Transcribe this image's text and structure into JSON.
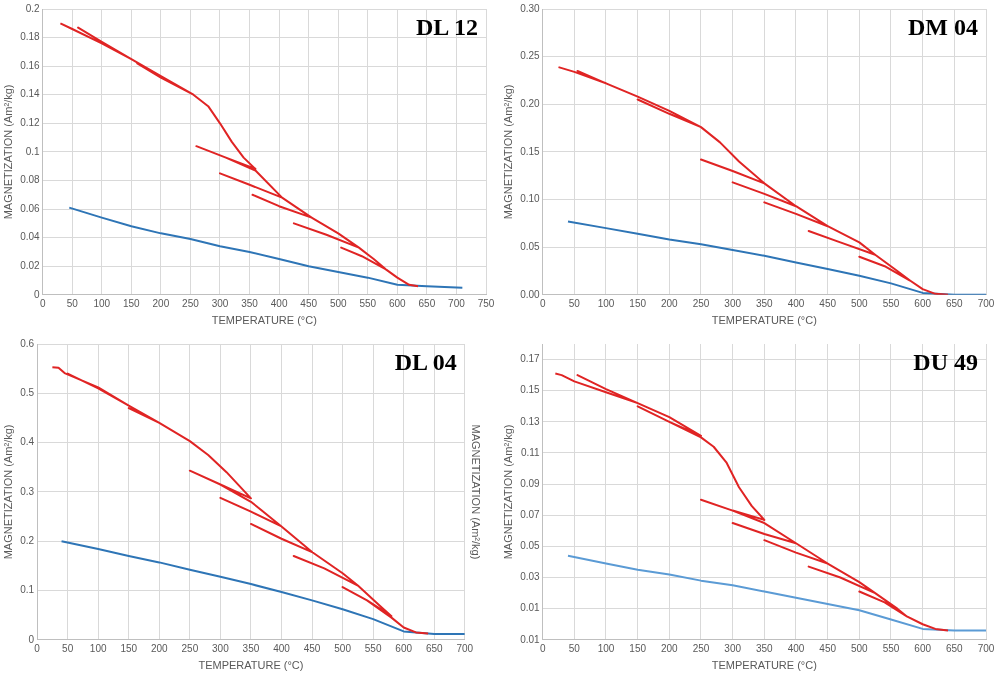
{
  "chart_data": [
    {
      "type": "line",
      "title": "DL 12",
      "xlabel": "TEMPERATURE (°C)",
      "ylabel": "MAGNETIZATION (Am²/kg)",
      "xlim": [
        0,
        750
      ],
      "xticks": [
        0,
        50,
        100,
        150,
        200,
        250,
        300,
        350,
        400,
        450,
        500,
        550,
        600,
        650,
        700,
        750
      ],
      "ylim": [
        0,
        0.2
      ],
      "yticks": [
        0,
        0.02,
        0.04,
        0.06,
        0.08,
        0.1,
        0.12,
        0.14,
        0.16,
        0.18,
        0.2
      ],
      "grid": true,
      "series": [
        {
          "color": "#e02424",
          "x": [
            30,
            50,
            100,
            150,
            100,
            60,
            100,
            150,
            200,
            255,
            200,
            160,
            200,
            255,
            280,
            300,
            320,
            340,
            360,
            310,
            260,
            310,
            360,
            405,
            350,
            300,
            350,
            405,
            455,
            400,
            355,
            400,
            455,
            500,
            535,
            480,
            425,
            480,
            535,
            560,
            580,
            540,
            505,
            540,
            580,
            600,
            620,
            635
          ],
          "values": [
            0.19,
            0.186,
            0.176,
            0.165,
            0.177,
            0.187,
            0.177,
            0.165,
            0.153,
            0.14,
            0.152,
            0.162,
            0.152,
            0.14,
            0.132,
            0.12,
            0.107,
            0.096,
            0.088,
            0.096,
            0.104,
            0.096,
            0.087,
            0.068,
            0.077,
            0.085,
            0.077,
            0.068,
            0.054,
            0.062,
            0.07,
            0.062,
            0.054,
            0.043,
            0.033,
            0.042,
            0.05,
            0.042,
            0.033,
            0.025,
            0.018,
            0.027,
            0.033,
            0.027,
            0.018,
            0.012,
            0.007,
            0.006
          ]
        },
        {
          "color": "#2e75b6",
          "x": [
            45,
            100,
            150,
            200,
            250,
            300,
            350,
            400,
            450,
            500,
            550,
            600,
            650,
            710
          ],
          "values": [
            0.061,
            0.054,
            0.048,
            0.043,
            0.039,
            0.034,
            0.03,
            0.025,
            0.02,
            0.016,
            0.012,
            0.007,
            0.006,
            0.005
          ]
        }
      ]
    },
    {
      "type": "line",
      "title": "DM 04",
      "xlabel": "TEMPERATURE (°C)",
      "ylabel": "MAGNETIZATION (Am²/kg)",
      "xlim": [
        0,
        700
      ],
      "xticks": [
        0,
        50,
        100,
        150,
        200,
        250,
        300,
        350,
        400,
        450,
        500,
        550,
        600,
        650,
        700
      ],
      "ylim": [
        0,
        0.3
      ],
      "yticks": [
        {
          "value": 0,
          "label": "0.00"
        },
        {
          "value": 0.05,
          "label": "0.05"
        },
        {
          "value": 0.1,
          "label": "0.10"
        },
        {
          "value": 0.15,
          "label": "0.15"
        },
        {
          "value": 0.2,
          "label": "0.20"
        },
        {
          "value": 0.25,
          "label": "0.25"
        },
        {
          "value": 0.3,
          "label": "0.30"
        }
      ],
      "grid": true,
      "series": [
        {
          "color": "#e02424",
          "x": [
            25,
            50,
            100,
            150,
            100,
            55,
            100,
            150,
            200,
            250,
            200,
            150,
            200,
            250,
            280,
            310,
            350,
            300,
            250,
            300,
            350,
            400,
            350,
            300,
            350,
            400,
            450,
            400,
            350,
            400,
            450,
            500,
            525,
            470,
            420,
            470,
            525,
            560,
            580,
            540,
            500,
            540,
            580,
            600,
            620,
            640
          ],
          "values": [
            0.239,
            0.234,
            0.222,
            0.208,
            0.222,
            0.235,
            0.222,
            0.208,
            0.193,
            0.176,
            0.19,
            0.205,
            0.19,
            0.176,
            0.16,
            0.14,
            0.117,
            0.13,
            0.142,
            0.13,
            0.117,
            0.093,
            0.106,
            0.118,
            0.106,
            0.093,
            0.072,
            0.085,
            0.097,
            0.085,
            0.072,
            0.055,
            0.042,
            0.055,
            0.067,
            0.055,
            0.042,
            0.025,
            0.015,
            0.03,
            0.04,
            0.03,
            0.015,
            0.006,
            0.001,
            0
          ]
        },
        {
          "color": "#2e75b6",
          "x": [
            40,
            100,
            150,
            200,
            250,
            300,
            350,
            400,
            450,
            500,
            550,
            600,
            650,
            700
          ],
          "values": [
            0.077,
            0.07,
            0.064,
            0.058,
            0.053,
            0.047,
            0.041,
            0.034,
            0.027,
            0.02,
            0.012,
            0.002,
            0,
            0
          ]
        }
      ]
    },
    {
      "type": "line",
      "title": "DL 04",
      "xlabel": "TEMPERATURE (°C)",
      "ylabel": "MAGNETIZATION (Am²/kg)",
      "y2label": "MAGNETIZATION (Am²/kg)",
      "xlim": [
        0,
        700
      ],
      "xticks": [
        0,
        50,
        100,
        150,
        200,
        250,
        300,
        350,
        400,
        450,
        500,
        550,
        600,
        650,
        700
      ],
      "ylim": [
        0,
        0.6
      ],
      "yticks": [
        0,
        0.1,
        0.2,
        0.3,
        0.4,
        0.5,
        0.6
      ],
      "grid": true,
      "series": [
        {
          "color": "#e02424",
          "x": [
            25,
            35,
            45,
            100,
            150,
            100,
            50,
            100,
            150,
            200,
            250,
            200,
            150,
            200,
            250,
            280,
            310,
            350,
            300,
            250,
            300,
            350,
            400,
            350,
            300,
            350,
            400,
            450,
            400,
            350,
            400,
            450,
            500,
            525,
            470,
            420,
            470,
            525,
            560,
            580,
            540,
            500,
            540,
            580,
            600,
            620,
            640
          ],
          "values": [
            0.553,
            0.552,
            0.541,
            0.512,
            0.475,
            0.51,
            0.54,
            0.51,
            0.475,
            0.44,
            0.403,
            0.44,
            0.47,
            0.44,
            0.403,
            0.375,
            0.34,
            0.287,
            0.315,
            0.343,
            0.315,
            0.28,
            0.23,
            0.26,
            0.288,
            0.26,
            0.23,
            0.178,
            0.205,
            0.235,
            0.205,
            0.178,
            0.135,
            0.11,
            0.145,
            0.17,
            0.145,
            0.11,
            0.07,
            0.048,
            0.08,
            0.107,
            0.08,
            0.045,
            0.025,
            0.015,
            0.013
          ]
        },
        {
          "color": "#2e75b6",
          "x": [
            40,
            100,
            150,
            200,
            250,
            300,
            350,
            400,
            450,
            500,
            550,
            600,
            650,
            700
          ],
          "values": [
            0.2,
            0.184,
            0.17,
            0.157,
            0.142,
            0.128,
            0.113,
            0.097,
            0.08,
            0.062,
            0.042,
            0.017,
            0.012,
            0.012
          ]
        }
      ]
    },
    {
      "type": "line",
      "title": "DU 49",
      "xlabel": "TEMPERATURE (°C)",
      "ylabel": "MAGNETIZATION (Am²/kg)",
      "xlim": [
        0,
        700
      ],
      "xticks": [
        0,
        50,
        100,
        150,
        200,
        250,
        300,
        350,
        400,
        450,
        500,
        550,
        600,
        650,
        700
      ],
      "ylim": [
        -0.01,
        0.18
      ],
      "yticks": [
        {
          "value": -0.01,
          "label": "0.01"
        },
        0.01,
        0.03,
        0.05,
        0.07,
        0.09,
        0.11,
        0.13,
        0.15,
        0.17
      ],
      "grid": true,
      "series": [
        {
          "color": "#e02424",
          "x": [
            20,
            30,
            50,
            100,
            150,
            100,
            55,
            100,
            150,
            200,
            250,
            200,
            150,
            200,
            250,
            270,
            290,
            310,
            330,
            350,
            300,
            250,
            300,
            350,
            400,
            350,
            300,
            350,
            400,
            450,
            400,
            350,
            400,
            450,
            500,
            525,
            470,
            420,
            470,
            525,
            560,
            575,
            540,
            500,
            540,
            575,
            600,
            620,
            640
          ],
          "values": [
            0.161,
            0.16,
            0.156,
            0.149,
            0.142,
            0.151,
            0.16,
            0.151,
            0.142,
            0.133,
            0.121,
            0.13,
            0.14,
            0.13,
            0.12,
            0.114,
            0.104,
            0.088,
            0.076,
            0.067,
            0.073,
            0.08,
            0.073,
            0.065,
            0.052,
            0.058,
            0.065,
            0.058,
            0.052,
            0.039,
            0.046,
            0.054,
            0.046,
            0.039,
            0.027,
            0.02,
            0.03,
            0.037,
            0.03,
            0.02,
            0.01,
            0.005,
            0.014,
            0.021,
            0.014,
            0.005,
            0,
            -0.003,
            -0.004
          ]
        },
        {
          "color": "#5b9bd5",
          "x": [
            40,
            100,
            150,
            200,
            250,
            300,
            350,
            400,
            450,
            500,
            550,
            600,
            650,
            700
          ],
          "values": [
            0.044,
            0.039,
            0.035,
            0.032,
            0.028,
            0.025,
            0.021,
            0.017,
            0.013,
            0.009,
            0.003,
            -0.003,
            -0.004,
            -0.004
          ]
        }
      ]
    }
  ]
}
